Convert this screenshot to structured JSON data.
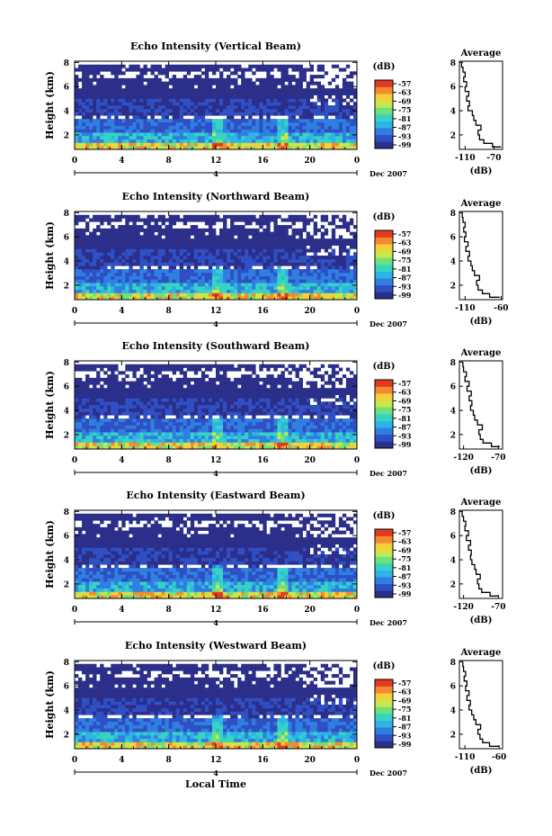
{
  "date_label": "Dec 2007",
  "time_marker": "4",
  "bottom_xlabel": "Local Time",
  "colorbar": {
    "unit": "(dB)",
    "ticks": [
      "-57",
      "-63",
      "-69",
      "-75",
      "-81",
      "-87",
      "-93",
      "-99"
    ],
    "colors": [
      "#2b2f8a",
      "#2f4fc4",
      "#2e7fe0",
      "#2fb3e6",
      "#36d4c0",
      "#6fe07e",
      "#c7e84a",
      "#f4d03a",
      "#f48a2e",
      "#e23b22"
    ]
  },
  "chart_data": [
    {
      "type": "heatmap",
      "title": "Echo Intensity (Vertical Beam)",
      "ylabel": "Height (km)",
      "xticks": [
        "0",
        "4",
        "8",
        "12",
        "16",
        "20",
        "0"
      ],
      "yticks": [
        "2",
        "4",
        "6",
        "8"
      ],
      "ylim": [
        0.8,
        8.1
      ],
      "profile": {
        "title": "Average",
        "xlabel": "(dB)",
        "xticks": [
          "-110",
          "-70"
        ],
        "yticks": [
          "2",
          "4",
          "6",
          "8"
        ],
        "xlim": [
          -118,
          -58
        ],
        "heights": [
          1.0,
          1.3,
          1.6,
          2.0,
          2.4,
          2.8,
          3.2,
          3.6,
          4.0,
          4.4,
          4.8,
          5.2,
          5.6,
          6.0,
          6.4,
          6.8,
          7.2,
          7.6,
          8.0
        ],
        "values": [
          -60,
          -72,
          -84,
          -90,
          -92,
          -88,
          -95,
          -98,
          -100,
          -106,
          -104,
          -108,
          -105,
          -110,
          -108,
          -112,
          -110,
          -113,
          -115
        ]
      }
    },
    {
      "type": "heatmap",
      "title": "Echo Intensity (Northward Beam)",
      "ylabel": "Height (km)",
      "xticks": [
        "0",
        "4",
        "8",
        "12",
        "16",
        "20",
        "0"
      ],
      "yticks": [
        "2",
        "4",
        "6",
        "8"
      ],
      "ylim": [
        0.8,
        8.1
      ],
      "profile": {
        "title": "Average",
        "xlabel": "(dB)",
        "xticks": [
          "-110",
          "-60"
        ],
        "yticks": [
          "2",
          "4",
          "6",
          "8"
        ],
        "xlim": [
          -118,
          -58
        ],
        "heights": [
          1.0,
          1.3,
          1.6,
          2.0,
          2.4,
          2.8,
          3.2,
          3.6,
          4.0,
          4.4,
          4.8,
          5.2,
          5.6,
          6.0,
          6.4,
          6.8,
          7.2,
          7.6,
          8.0
        ],
        "values": [
          -62,
          -76,
          -86,
          -92,
          -94,
          -90,
          -97,
          -100,
          -102,
          -106,
          -104,
          -109,
          -106,
          -111,
          -109,
          -112,
          -110,
          -113,
          -114
        ]
      }
    },
    {
      "type": "heatmap",
      "title": "Echo Intensity (Southward Beam)",
      "ylabel": "Height (km)",
      "xticks": [
        "0",
        "4",
        "8",
        "12",
        "16",
        "20",
        "0"
      ],
      "yticks": [
        "2",
        "4",
        "6",
        "8"
      ],
      "ylim": [
        0.8,
        8.1
      ],
      "profile": {
        "title": "Average",
        "xlabel": "(dB)",
        "xticks": [
          "-120",
          "-70"
        ],
        "yticks": [
          "2",
          "4",
          "6",
          "8"
        ],
        "xlim": [
          -126,
          -64
        ],
        "heights": [
          1.0,
          1.3,
          1.6,
          2.0,
          2.4,
          2.8,
          3.2,
          3.6,
          4.0,
          4.4,
          4.8,
          5.2,
          5.6,
          6.0,
          6.4,
          6.8,
          7.2,
          7.6,
          8.0
        ],
        "values": [
          -68,
          -80,
          -92,
          -96,
          -98,
          -93,
          -100,
          -104,
          -106,
          -110,
          -108,
          -112,
          -109,
          -115,
          -112,
          -118,
          -116,
          -120,
          -121
        ]
      }
    },
    {
      "type": "heatmap",
      "title": "Echo Intensity (Eastward Beam)",
      "ylabel": "Height (km)",
      "xticks": [
        "0",
        "4",
        "8",
        "12",
        "16",
        "20",
        "0"
      ],
      "yticks": [
        "2",
        "4",
        "6",
        "8"
      ],
      "ylim": [
        0.8,
        8.1
      ],
      "profile": {
        "title": "Average",
        "xlabel": "(dB)",
        "xticks": [
          "-120",
          "-70"
        ],
        "yticks": [
          "2",
          "4",
          "6",
          "8"
        ],
        "xlim": [
          -126,
          -64
        ],
        "heights": [
          1.0,
          1.3,
          1.6,
          2.0,
          2.4,
          2.8,
          3.2,
          3.6,
          4.0,
          4.4,
          4.8,
          5.2,
          5.6,
          6.0,
          6.4,
          6.8,
          7.2,
          7.6,
          8.0
        ],
        "values": [
          -70,
          -82,
          -94,
          -98,
          -100,
          -96,
          -102,
          -104,
          -108,
          -110,
          -109,
          -113,
          -110,
          -116,
          -113,
          -118,
          -117,
          -120,
          -122
        ]
      }
    },
    {
      "type": "heatmap",
      "title": "Echo Intensity (Westward Beam)",
      "ylabel": "Height (km)",
      "xticks": [
        "0",
        "4",
        "8",
        "12",
        "16",
        "20",
        "0"
      ],
      "yticks": [
        "2",
        "4",
        "6",
        "8"
      ],
      "ylim": [
        0.8,
        8.1
      ],
      "profile": {
        "title": "Average",
        "xlabel": "(dB)",
        "xticks": [
          "-110",
          "-60"
        ],
        "yticks": [
          "2",
          "4",
          "6",
          "8"
        ],
        "xlim": [
          -118,
          -55
        ],
        "heights": [
          1.0,
          1.3,
          1.6,
          2.0,
          2.4,
          2.8,
          3.2,
          3.6,
          4.0,
          4.4,
          4.8,
          5.2,
          5.6,
          6.0,
          6.4,
          6.8,
          7.2,
          7.6,
          8.0
        ],
        "values": [
          -60,
          -74,
          -84,
          -88,
          -91,
          -87,
          -94,
          -97,
          -100,
          -104,
          -102,
          -107,
          -104,
          -109,
          -107,
          -111,
          -109,
          -112,
          -113
        ]
      }
    }
  ]
}
